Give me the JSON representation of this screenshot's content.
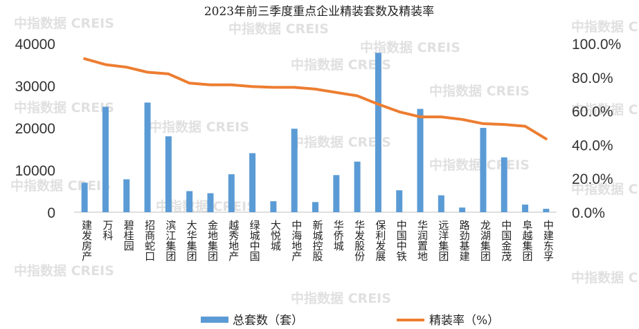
{
  "watermark": "中指数据 CREIS",
  "chart_data": {
    "type": "bar+line",
    "title": "2023年前三季度重点企业精装套数及精装率",
    "categories": [
      "建发房产",
      "万科",
      "碧桂园",
      "招商蛇口",
      "滨江集团",
      "大华集团",
      "金地集团",
      "越秀地产",
      "绿城中国",
      "大悦城",
      "中海地产",
      "新城控股",
      "华侨城",
      "华发股份",
      "保利发展",
      "中国中铁",
      "华润置地",
      "远洋集团",
      "路劲基建",
      "龙湖集团",
      "中国金茂",
      "阜越集团",
      "中建东孚"
    ],
    "series": [
      {
        "name": "总套数（套）",
        "type": "bar",
        "axis": "left",
        "color": "#5b9bd5",
        "values": [
          7000,
          25000,
          7800,
          26000,
          18000,
          5000,
          4500,
          9000,
          14000,
          2600,
          19800,
          2400,
          8800,
          12000,
          37800,
          5200,
          24500,
          4000,
          1100,
          20000,
          13000,
          1800,
          800
        ]
      },
      {
        "name": "精装率（%）",
        "type": "line",
        "axis": "right",
        "color": "#ed7d31",
        "values": [
          91,
          87.5,
          86,
          83,
          82,
          76.5,
          75.5,
          75.5,
          74.5,
          74,
          74,
          73,
          71,
          69,
          64,
          59.5,
          56.5,
          56.5,
          55,
          52.5,
          52,
          51,
          43.5
        ]
      }
    ],
    "y_left": {
      "min": 0,
      "max": 40000,
      "ticks": [
        "0",
        "10000",
        "20000",
        "30000",
        "40000"
      ]
    },
    "y_right": {
      "min": 0,
      "max": 100,
      "ticks": [
        "0.0%",
        "20.0%",
        "40.0%",
        "60.0%",
        "80.0%",
        "100.0%"
      ]
    },
    "grid": false,
    "legend_position": "bottom"
  }
}
